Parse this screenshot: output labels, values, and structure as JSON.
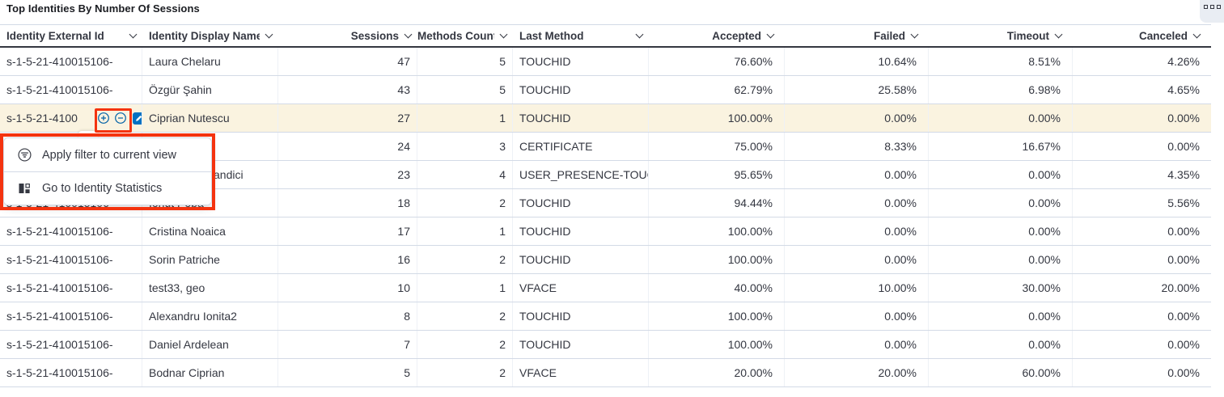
{
  "panel": {
    "title": "Top Identities By Number Of Sessions",
    "options_icon": "panel-options-grid-icon"
  },
  "colors": {
    "annotation_red": "#f4330f",
    "row_highlight": "#faf3e0",
    "action_blue": "#0061a6",
    "edit_badge_blue": "#0071c2",
    "header_text": "#343741",
    "row_border": "#d3dae6"
  },
  "table": {
    "columns": [
      {
        "key": "external_id",
        "label": "Identity External Id",
        "align": "left"
      },
      {
        "key": "display_name",
        "label": "Identity Display Name",
        "align": "left"
      },
      {
        "key": "sessions",
        "label": "Sessions",
        "align": "right"
      },
      {
        "key": "methods_count",
        "label": "Methods Count",
        "align": "right"
      },
      {
        "key": "last_method",
        "label": "Last Method",
        "align": "left"
      },
      {
        "key": "accepted",
        "label": "Accepted",
        "align": "right"
      },
      {
        "key": "failed",
        "label": "Failed",
        "align": "right"
      },
      {
        "key": "timeout",
        "label": "Timeout",
        "align": "right"
      },
      {
        "key": "canceled",
        "label": "Canceled",
        "align": "right"
      }
    ],
    "rows": [
      {
        "external_id": "s-1-5-21-410015106-",
        "display_name": "Laura Chelaru",
        "sessions": "47",
        "methods_count": "5",
        "last_method": "TOUCHID",
        "accepted": "76.60%",
        "failed": "10.64%",
        "timeout": "8.51%",
        "canceled": "4.26%"
      },
      {
        "external_id": "s-1-5-21-410015106-",
        "display_name": "Özgür Şahin",
        "sessions": "43",
        "methods_count": "5",
        "last_method": "TOUCHID",
        "accepted": "62.79%",
        "failed": "25.58%",
        "timeout": "6.98%",
        "canceled": "4.65%"
      },
      {
        "external_id": "s-1-5-21-4100",
        "display_name": "Ciprian Nutescu",
        "sessions": "27",
        "methods_count": "1",
        "last_method": "TOUCHID",
        "accepted": "100.00%",
        "failed": "0.00%",
        "timeout": "0.00%",
        "canceled": "0.00%",
        "highlighted": true,
        "cell_actions": true
      },
      {
        "external_id": "s-1-5-21-410015106-",
        "display_name": "",
        "sessions": "24",
        "methods_count": "3",
        "last_method": "CERTIFICATE",
        "accepted": "75.00%",
        "failed": "8.33%",
        "timeout": "16.67%",
        "canceled": "0.00%"
      },
      {
        "external_id": "s-1-5-21-410015106-",
        "display_name": "andici",
        "sessions": "23",
        "methods_count": "4",
        "last_method": "USER_PRESENCE-TOUC",
        "accepted": "95.65%",
        "failed": "0.00%",
        "timeout": "0.00%",
        "canceled": "4.35%",
        "name_indent": 80
      },
      {
        "external_id": "s-1-5-21-410015106-",
        "display_name": "Ionut Popa",
        "sessions": "18",
        "methods_count": "2",
        "last_method": "TOUCHID",
        "accepted": "94.44%",
        "failed": "0.00%",
        "timeout": "0.00%",
        "canceled": "5.56%"
      },
      {
        "external_id": "s-1-5-21-410015106-",
        "display_name": "Cristina Noaica",
        "sessions": "17",
        "methods_count": "1",
        "last_method": "TOUCHID",
        "accepted": "100.00%",
        "failed": "0.00%",
        "timeout": "0.00%",
        "canceled": "0.00%"
      },
      {
        "external_id": "s-1-5-21-410015106-",
        "display_name": "Sorin Patriche",
        "sessions": "16",
        "methods_count": "2",
        "last_method": "TOUCHID",
        "accepted": "100.00%",
        "failed": "0.00%",
        "timeout": "0.00%",
        "canceled": "0.00%"
      },
      {
        "external_id": "s-1-5-21-410015106-",
        "display_name": "test33, geo",
        "sessions": "10",
        "methods_count": "1",
        "last_method": "VFACE",
        "accepted": "40.00%",
        "failed": "10.00%",
        "timeout": "30.00%",
        "canceled": "20.00%"
      },
      {
        "external_id": "s-1-5-21-410015106-",
        "display_name": "Alexandru Ionita2",
        "sessions": "8",
        "methods_count": "2",
        "last_method": "TOUCHID",
        "accepted": "100.00%",
        "failed": "0.00%",
        "timeout": "0.00%",
        "canceled": "0.00%"
      },
      {
        "external_id": "s-1-5-21-410015106-",
        "display_name": "Daniel Ardelean",
        "sessions": "7",
        "methods_count": "2",
        "last_method": "TOUCHID",
        "accepted": "100.00%",
        "failed": "0.00%",
        "timeout": "0.00%",
        "canceled": "0.00%"
      },
      {
        "external_id": "s-1-5-21-410015106-",
        "display_name": "Bodnar Ciprian",
        "sessions": "5",
        "methods_count": "2",
        "last_method": "VFACE",
        "accepted": "20.00%",
        "failed": "20.00%",
        "timeout": "60.00%",
        "canceled": "0.00%"
      }
    ]
  },
  "cell_actions": {
    "filter_for_icon": "filter-for-plus-icon",
    "filter_out_icon": "filter-out-minus-icon",
    "edit_icon": "edit-pencil-icon"
  },
  "context_menu": {
    "items": [
      {
        "icon": "filter-in-circle-icon",
        "label": "Apply filter to current view"
      },
      {
        "icon": "identity-statistics-icon",
        "label": "Go to Identity Statistics"
      }
    ]
  }
}
